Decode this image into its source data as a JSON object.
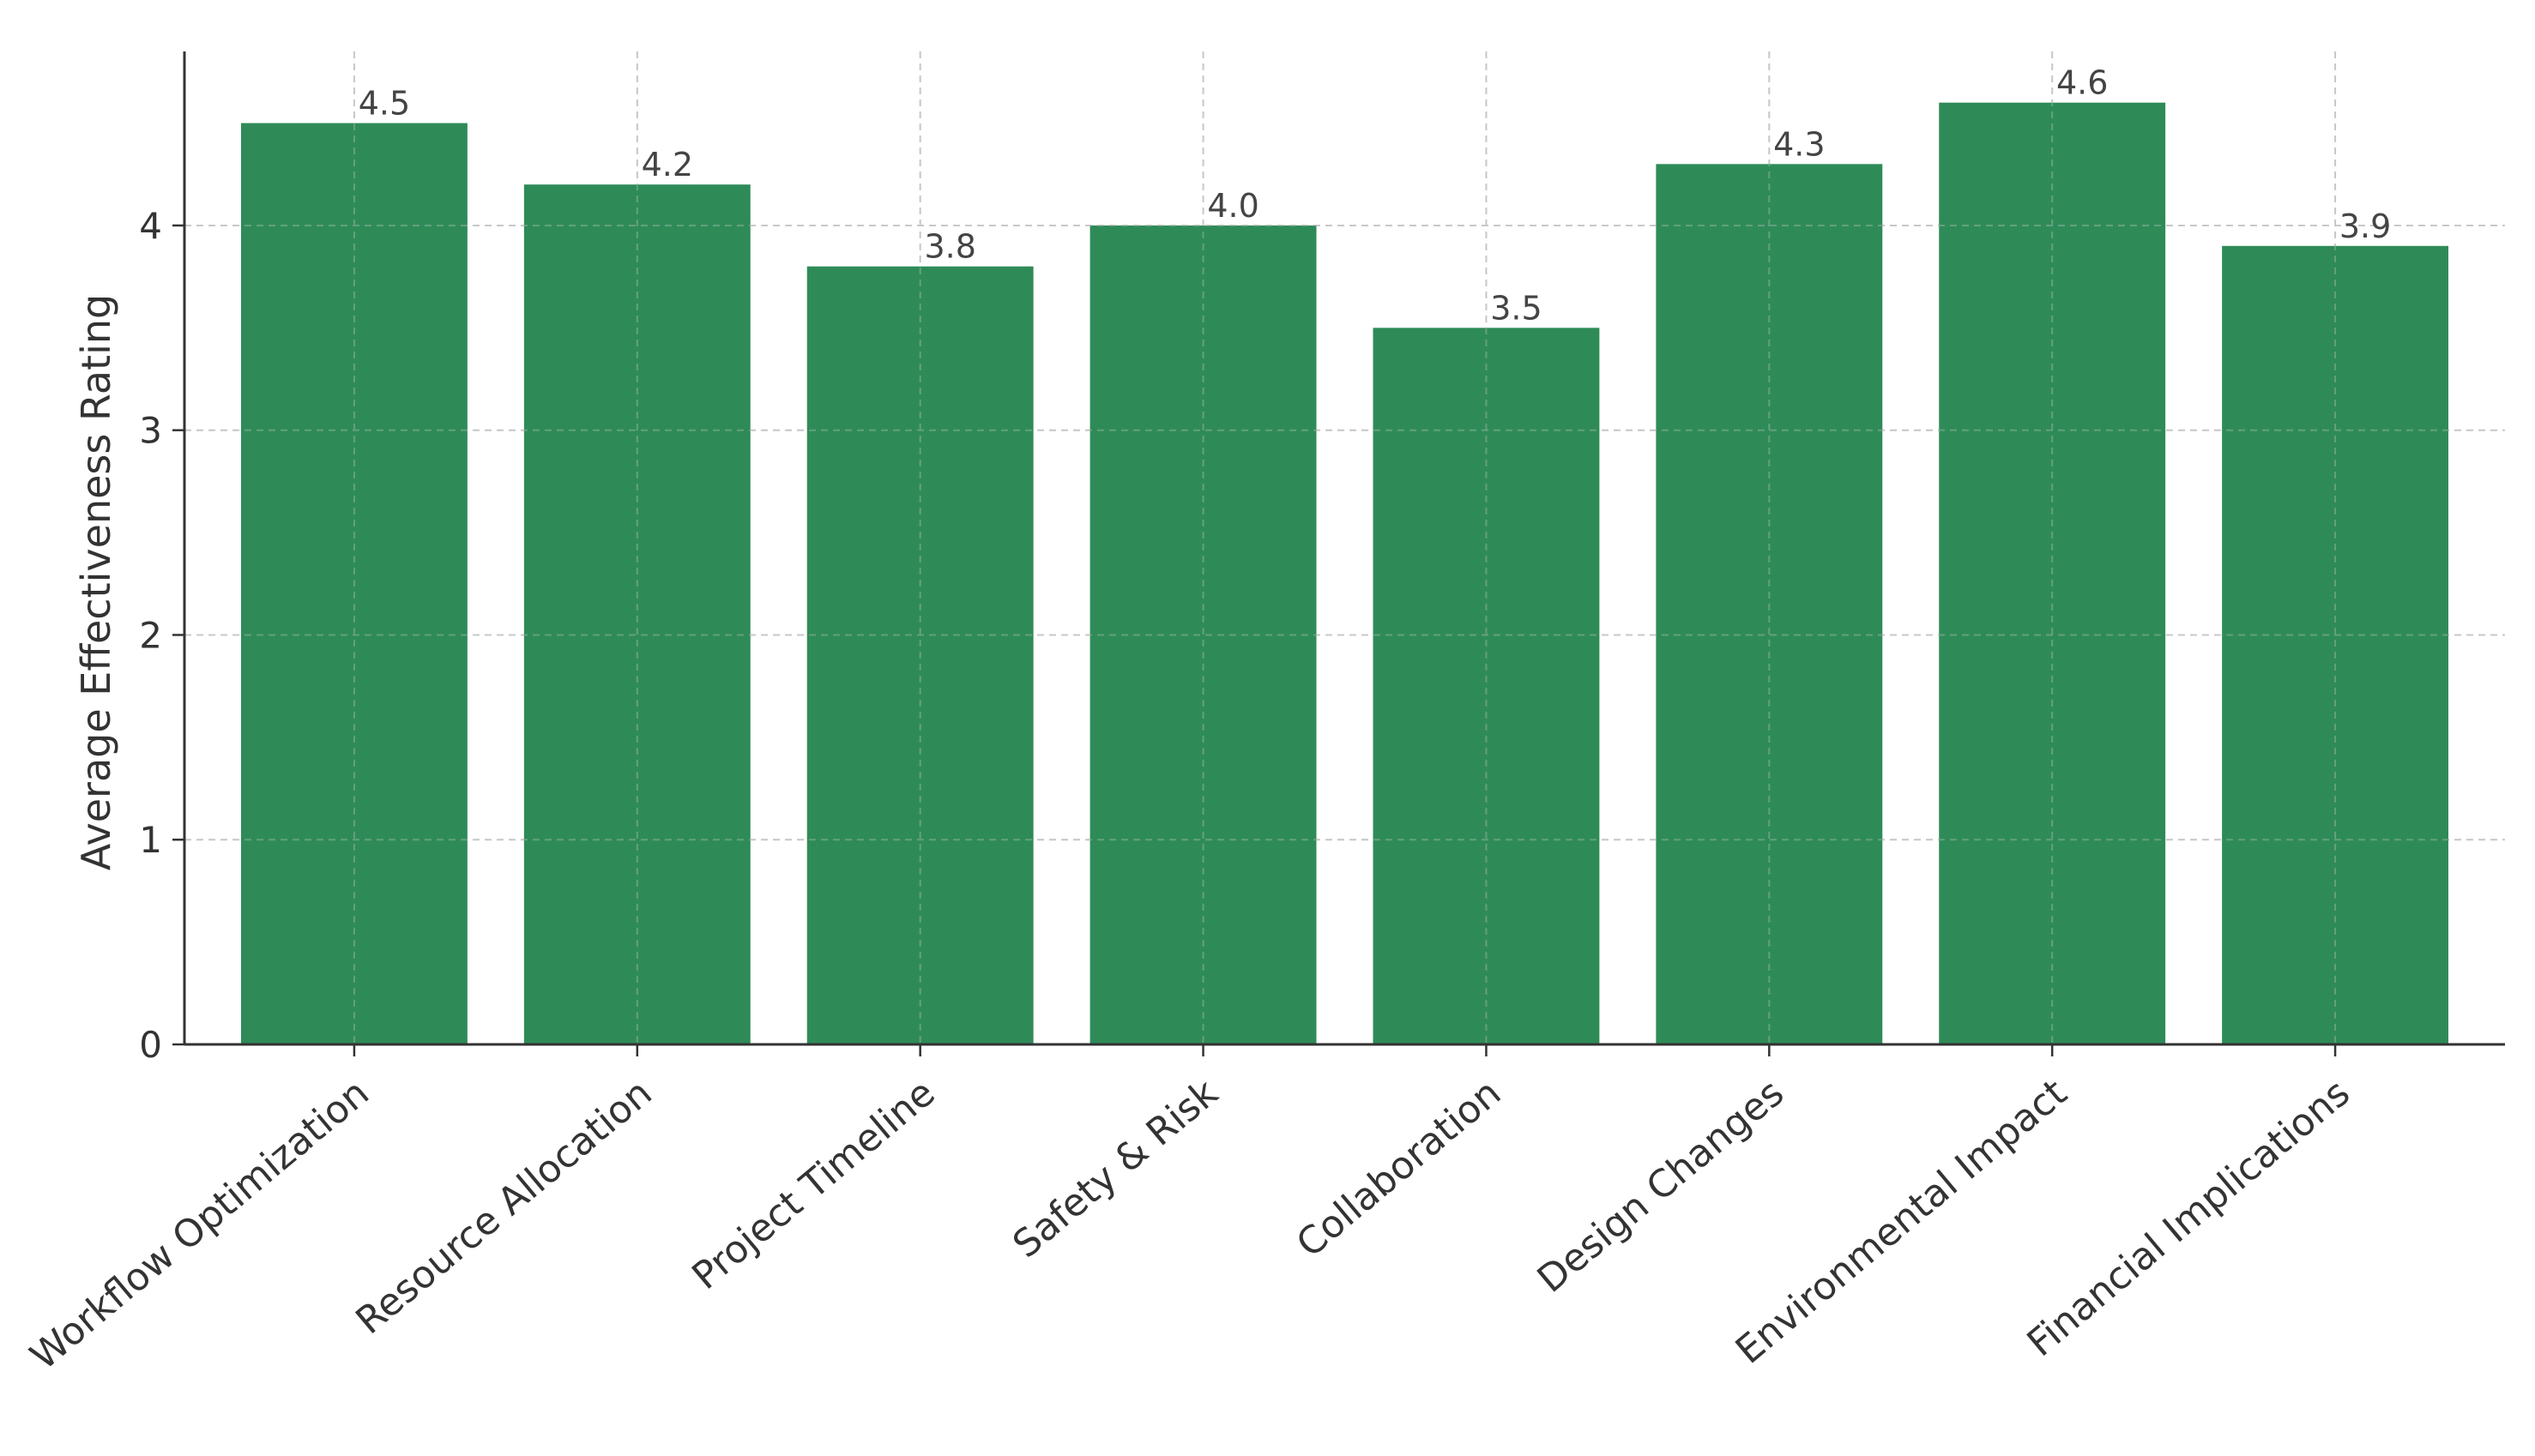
{
  "chart_data": {
    "type": "bar",
    "title": "",
    "xlabel": "",
    "ylabel": "Average Effectiveness Rating",
    "categories": [
      "Workflow Optimization",
      "Resource Allocation",
      "Project Timeline",
      "Safety & Risk",
      "Collaboration",
      "Design Changes",
      "Environmental Impact",
      "Financial Implications"
    ],
    "values": [
      4.5,
      4.2,
      3.8,
      4.0,
      3.5,
      4.3,
      4.6,
      3.9
    ],
    "value_labels": [
      "4.5",
      "4.2",
      "3.8",
      "4.0",
      "3.5",
      "4.3",
      "4.6",
      "3.9"
    ],
    "ylim": [
      0,
      4.85
    ],
    "yticks": [
      0,
      1,
      2,
      3,
      4
    ],
    "grid": true,
    "bar_color": "#2e8b57"
  }
}
